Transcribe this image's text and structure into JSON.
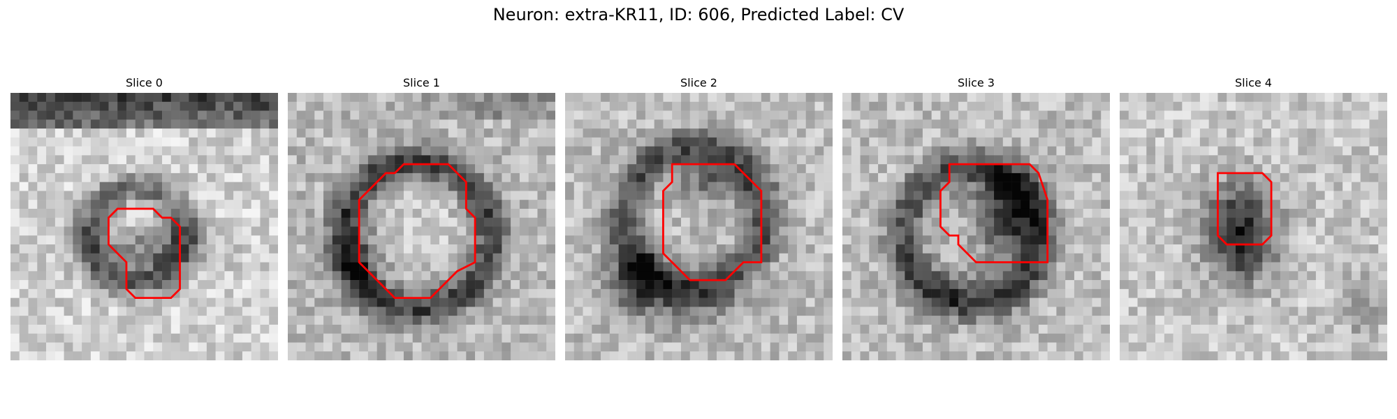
{
  "figure": {
    "title": "Neuron: extra-KR11, ID: 606, Predicted Label: CV"
  },
  "panels": [
    {
      "title": "Slice 0",
      "texture": "horizontal-dark-band-top-ring-center",
      "contour_color": "#ff0000"
    },
    {
      "title": "Slice 1",
      "texture": "large-dark-ring",
      "contour_color": "#ff0000"
    },
    {
      "title": "Slice 2",
      "texture": "dark-ring-lower-left-blob",
      "contour_color": "#ff0000"
    },
    {
      "title": "Slice 3",
      "texture": "dark-ring-upper-right-core",
      "contour_color": "#ff0000"
    },
    {
      "title": "Slice 4",
      "texture": "small-dark-core",
      "contour_color": "#ff0000"
    }
  ]
}
